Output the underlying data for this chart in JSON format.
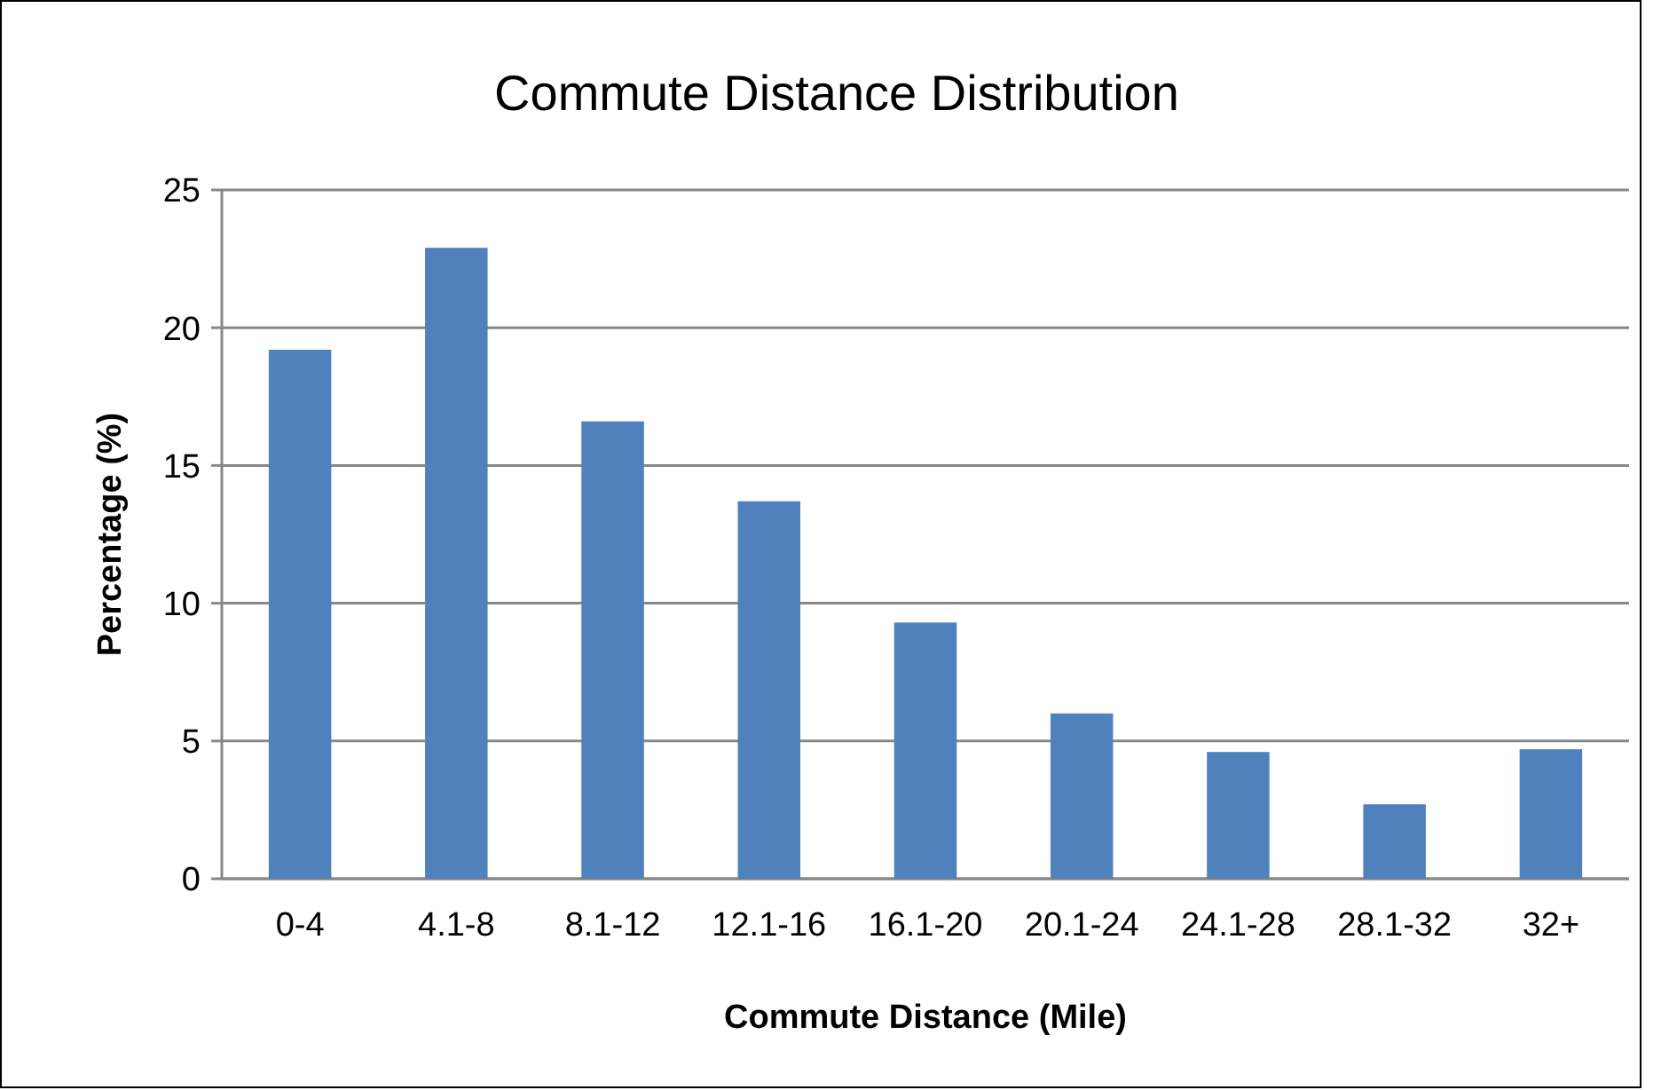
{
  "chart_data": {
    "type": "bar",
    "title": "Commute Distance Distribution",
    "xlabel": "Commute Distance (Mile)",
    "ylabel": "Percentage (%)",
    "categories": [
      "0-4",
      "4.1-8",
      "8.1-12",
      "12.1-16",
      "16.1-20",
      "20.1-24",
      "24.1-28",
      "28.1-32",
      "32+"
    ],
    "values": [
      19.2,
      22.9,
      16.6,
      13.7,
      9.3,
      6.0,
      4.6,
      2.7,
      4.7
    ],
    "color": "#4f81bd",
    "ylim": [
      0,
      25
    ],
    "yticks": [
      0,
      5,
      10,
      15,
      20,
      25
    ],
    "grid": "y"
  }
}
